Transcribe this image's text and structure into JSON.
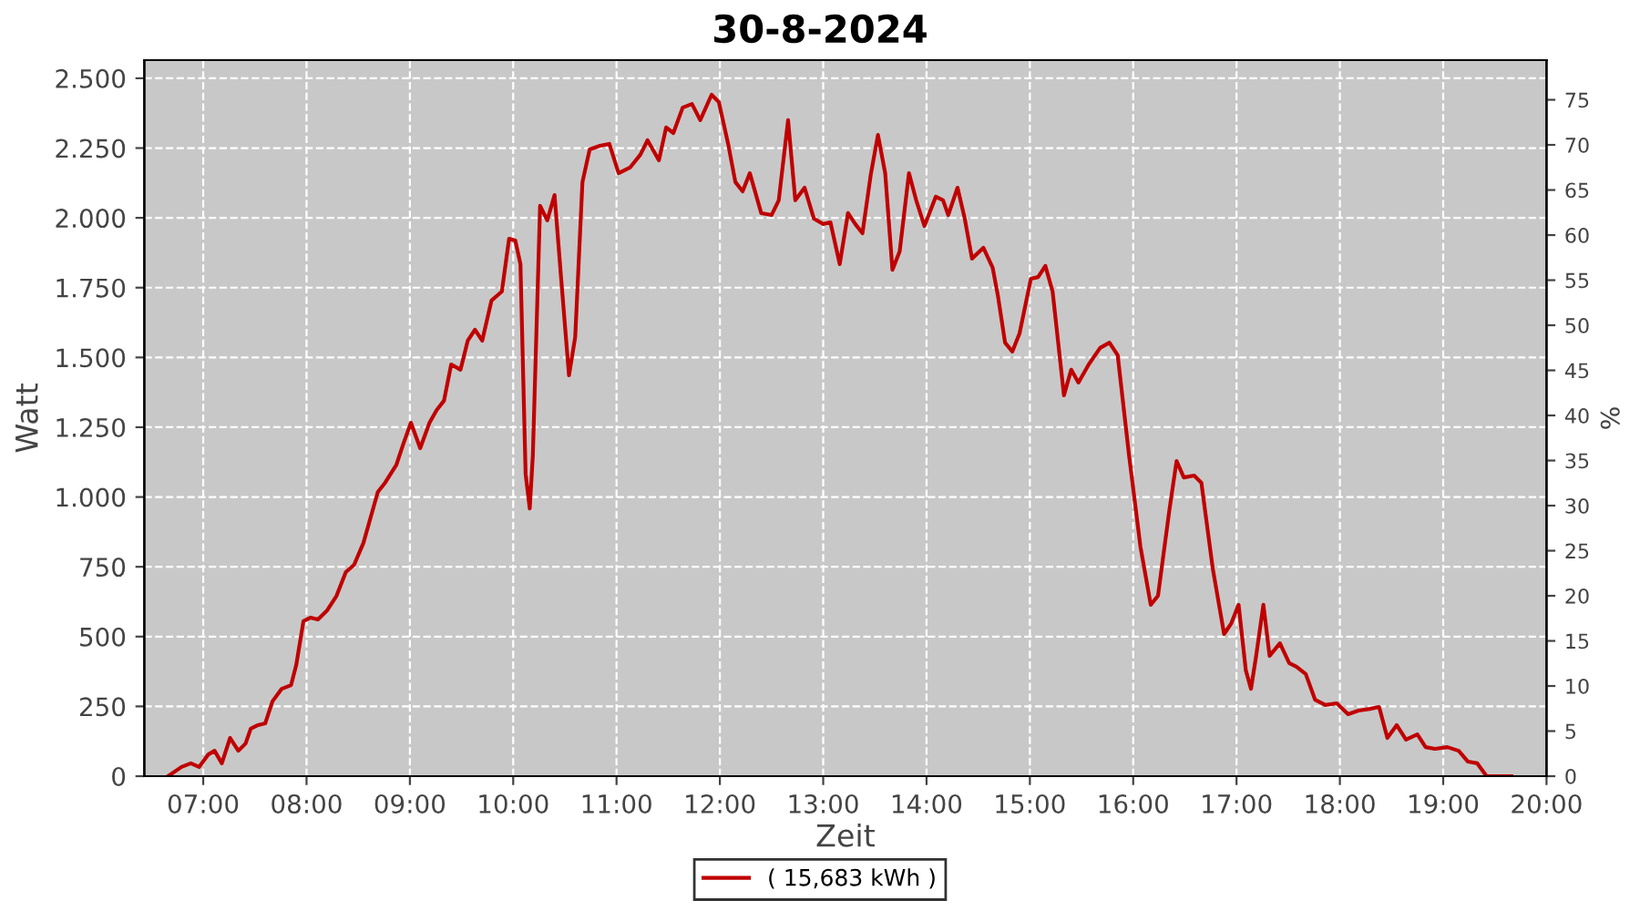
{
  "chart_data": {
    "type": "line",
    "title": "30-8-2024",
    "xlabel": "Zeit",
    "ylabel": "Watt",
    "y2label": "%",
    "xlim": [
      6.43,
      20.0
    ],
    "xticks": [
      {
        "value": 7,
        "label": "07:00"
      },
      {
        "value": 8,
        "label": "08:00"
      },
      {
        "value": 9,
        "label": "09:00"
      },
      {
        "value": 10,
        "label": "10:00"
      },
      {
        "value": 11,
        "label": "11:00"
      },
      {
        "value": 12,
        "label": "12:00"
      },
      {
        "value": 13,
        "label": "13:00"
      },
      {
        "value": 14,
        "label": "14:00"
      },
      {
        "value": 15,
        "label": "15:00"
      },
      {
        "value": 16,
        "label": "16:00"
      },
      {
        "value": 17,
        "label": "17:00"
      },
      {
        "value": 18,
        "label": "18:00"
      },
      {
        "value": 19,
        "label": "19:00"
      },
      {
        "value": 20,
        "label": "20:00"
      }
    ],
    "ylim": [
      0,
      2565
    ],
    "yticks": [
      0,
      250,
      500,
      750,
      {
        "value": 1000,
        "label": "1.000"
      },
      {
        "value": 1250,
        "label": "1.250"
      },
      {
        "value": 1500,
        "label": "1.500"
      },
      {
        "value": 1750,
        "label": "1.750"
      },
      {
        "value": 2000,
        "label": "2.000"
      },
      {
        "value": 2250,
        "label": "2.250"
      },
      {
        "value": 2500,
        "label": "2.500"
      }
    ],
    "y2lim": [
      0,
      79.4
    ],
    "y2ticks": [
      0,
      5,
      10,
      15,
      20,
      25,
      30,
      35,
      40,
      45,
      50,
      55,
      60,
      65,
      70,
      75
    ],
    "grid": true,
    "legend": "bottom",
    "marker": "none",
    "line_style": "solid",
    "series": [
      {
        "name": "( 15,683 kWh )",
        "color": "#c00000",
        "x": [
          6.66,
          6.79,
          6.88,
          6.96,
          7.05,
          7.11,
          7.18,
          7.26,
          7.34,
          7.41,
          7.46,
          7.53,
          7.6,
          7.67,
          7.76,
          7.85,
          7.9,
          7.97,
          8.04,
          8.11,
          8.2,
          8.29,
          8.38,
          8.46,
          8.55,
          8.64,
          8.69,
          8.76,
          8.87,
          8.94,
          9.01,
          9.1,
          9.19,
          9.26,
          9.33,
          9.4,
          9.49,
          9.56,
          9.63,
          9.7,
          9.79,
          9.89,
          9.96,
          10.02,
          10.07,
          10.12,
          10.16,
          10.19,
          10.26,
          10.33,
          10.4,
          10.46,
          10.54,
          10.6,
          10.67,
          10.74,
          10.84,
          10.93,
          11.02,
          11.13,
          11.23,
          11.3,
          11.41,
          11.48,
          11.55,
          11.64,
          11.73,
          11.81,
          11.92,
          11.99,
          12.08,
          12.15,
          12.22,
          12.29,
          12.4,
          12.5,
          12.57,
          12.66,
          12.73,
          12.82,
          12.91,
          13.0,
          13.07,
          13.16,
          13.24,
          13.31,
          13.38,
          13.46,
          13.53,
          13.6,
          13.67,
          13.74,
          13.83,
          13.9,
          13.98,
          14.09,
          14.16,
          14.21,
          14.3,
          14.37,
          14.44,
          14.55,
          14.64,
          14.69,
          14.76,
          14.83,
          14.9,
          15.01,
          15.08,
          15.15,
          15.22,
          15.33,
          15.4,
          15.47,
          15.57,
          15.68,
          15.77,
          15.85,
          15.96,
          16.07,
          16.17,
          16.24,
          16.35,
          16.42,
          16.49,
          16.59,
          16.66,
          16.77,
          16.88,
          16.95,
          17.02,
          17.09,
          17.14,
          17.19,
          17.26,
          17.32,
          17.42,
          17.51,
          17.58,
          17.67,
          17.76,
          17.86,
          17.97,
          18.08,
          18.18,
          18.29,
          18.38,
          18.46,
          18.55,
          18.64,
          18.75,
          18.83,
          18.92,
          19.04,
          19.15,
          19.24,
          19.33,
          19.42,
          19.66
        ],
        "values": [
          0,
          33,
          46,
          33,
          78,
          91,
          46,
          137,
          91,
          117,
          170,
          183,
          189,
          268,
          313,
          326,
          398,
          555,
          568,
          561,
          594,
          646,
          731,
          757,
          835,
          953,
          1018,
          1051,
          1116,
          1194,
          1266,
          1175,
          1266,
          1312,
          1345,
          1475,
          1456,
          1560,
          1599,
          1560,
          1704,
          1736,
          1925,
          1919,
          1834,
          1083,
          959,
          1149,
          2043,
          1991,
          2082,
          1801,
          1436,
          1573,
          2128,
          2245,
          2258,
          2265,
          2160,
          2180,
          2226,
          2278,
          2206,
          2324,
          2304,
          2395,
          2408,
          2350,
          2441,
          2415,
          2265,
          2128,
          2095,
          2160,
          2017,
          2010,
          2063,
          2350,
          2063,
          2108,
          1997,
          1978,
          1984,
          1834,
          2017,
          1978,
          1945,
          2154,
          2297,
          2160,
          1814,
          1880,
          2160,
          2063,
          1971,
          2076,
          2063,
          2010,
          2108,
          1997,
          1854,
          1893,
          1821,
          1723,
          1553,
          1521,
          1586,
          1782,
          1788,
          1828,
          1736,
          1364,
          1456,
          1410,
          1475,
          1534,
          1553,
          1508,
          1149,
          822,
          614,
          646,
          953,
          1129,
          1070,
          1077,
          1051,
          744,
          509,
          548,
          614,
          379,
          313,
          431,
          614,
          431,
          476,
          405,
          392,
          366,
          274,
          255,
          261,
          222,
          235,
          241,
          248,
          137,
          183,
          131,
          150,
          104,
          98,
          104,
          91,
          52,
          46,
          0,
          0
        ]
      }
    ]
  }
}
